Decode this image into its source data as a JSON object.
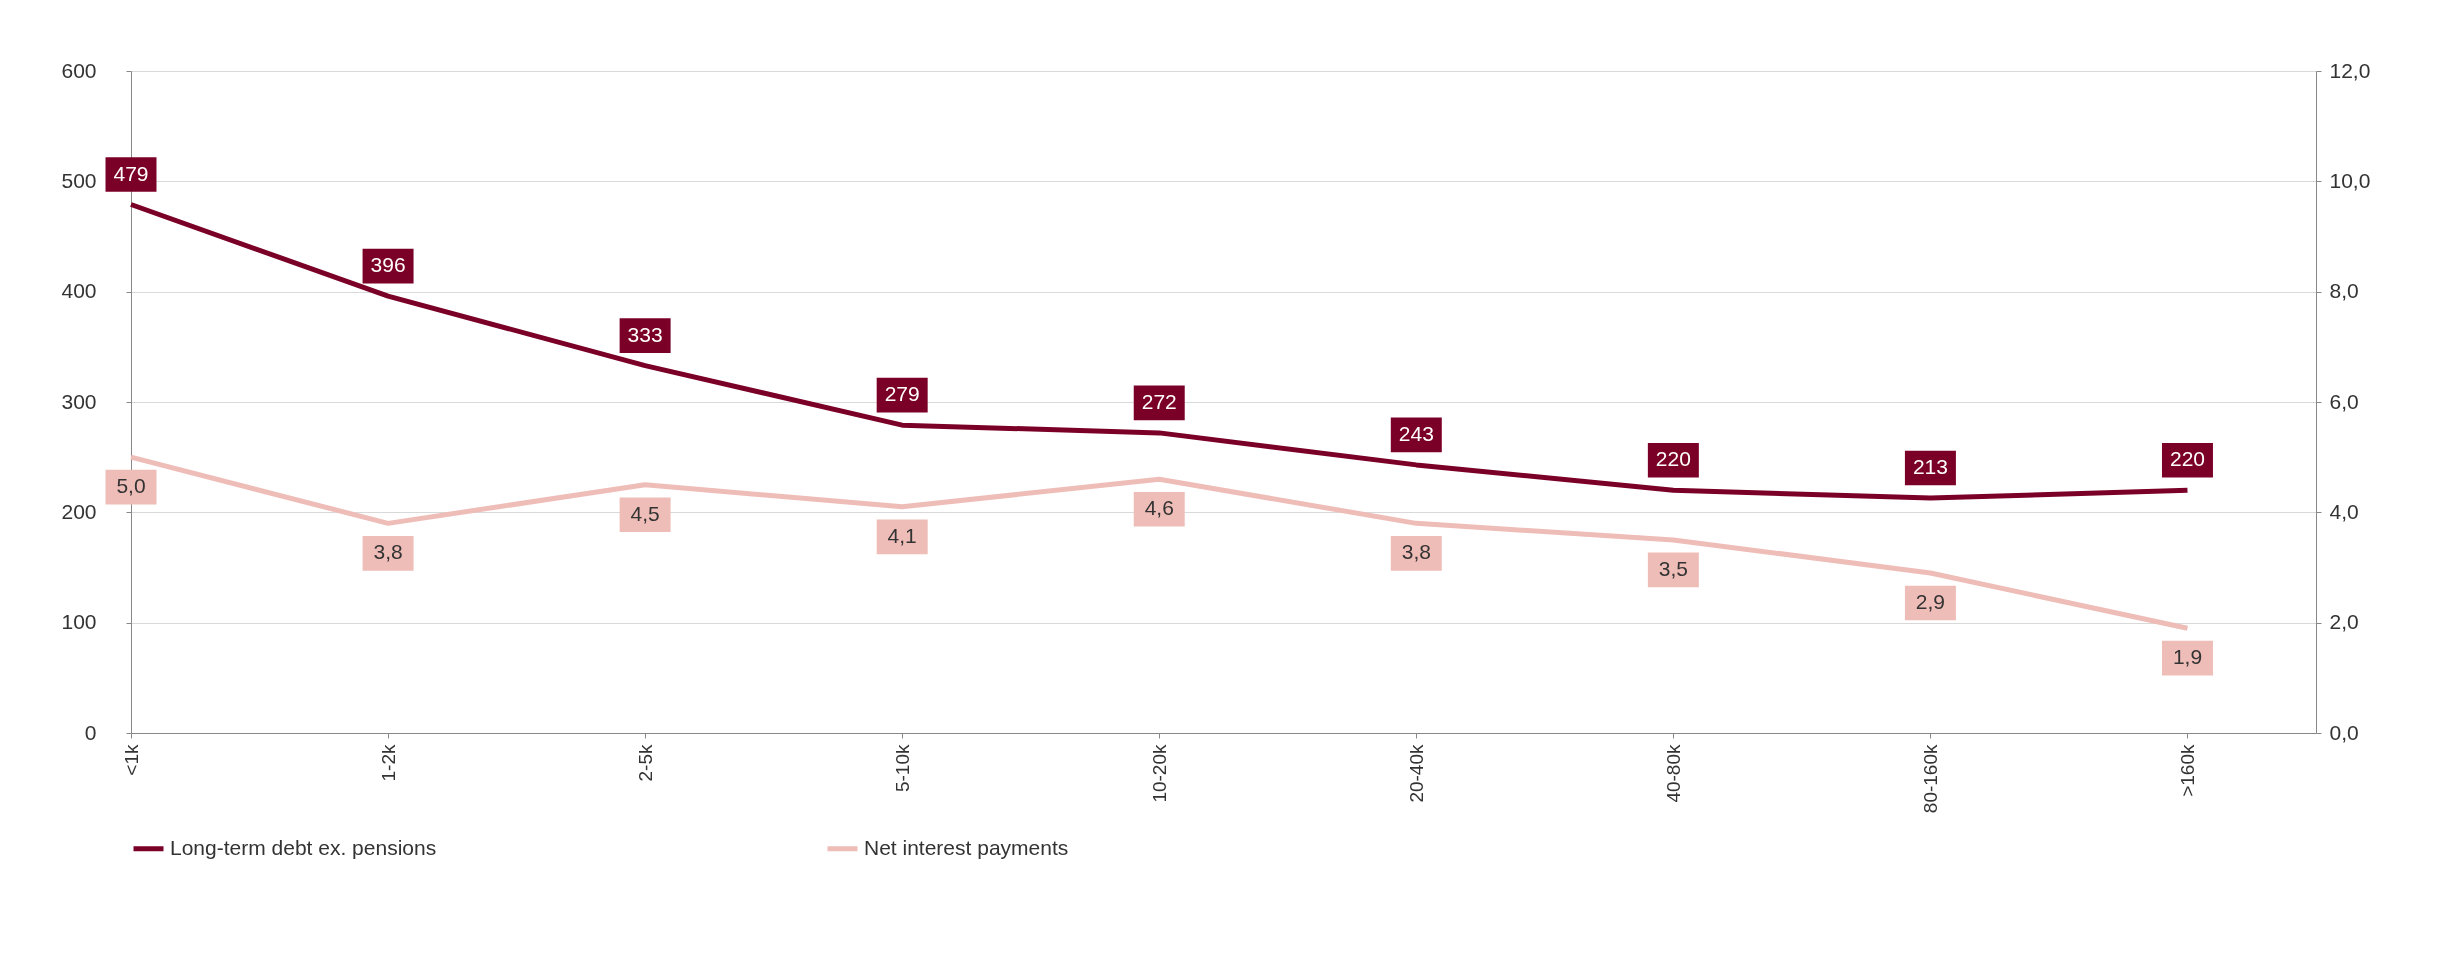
{
  "chart_data": {
    "type": "line",
    "categories": [
      "<1k",
      "1-2k",
      "2-5k",
      "5-10k",
      "10-20k",
      "20-40k",
      "40-80k",
      "80-160k",
      ">160k"
    ],
    "series": [
      {
        "name": "Long-term debt ex. pensions",
        "color": "#7b0028",
        "values": [
          479,
          396,
          333,
          279,
          272,
          243,
          220,
          213,
          220
        ],
        "value_labels": [
          "479",
          "396",
          "333",
          "279",
          "272",
          "243",
          "220",
          "213",
          "220"
        ]
      },
      {
        "name": "Net interest payments",
        "color": "#efbdb8",
        "axis": "y2",
        "values": [
          5.0,
          3.8,
          4.5,
          4.1,
          4.6,
          3.8,
          3.5,
          2.9,
          1.9
        ],
        "value_labels": [
          "5,0",
          "3,8",
          "4,5",
          "4,1",
          "4,6",
          "3,8",
          "3,5",
          "2,9",
          "1,9"
        ]
      }
    ],
    "ylim": [
      0,
      600
    ],
    "yticks": [
      0,
      100,
      200,
      300,
      400,
      500,
      600
    ],
    "y2lim": [
      0,
      12
    ],
    "y2ticks": [
      {
        "value": 0,
        "label": "0,0"
      },
      {
        "value": 2,
        "label": "2,0"
      },
      {
        "value": 4,
        "label": "4,0"
      },
      {
        "value": 6,
        "label": "6,0"
      },
      {
        "value": 8,
        "label": "8,0"
      },
      {
        "value": 10,
        "label": "10,0"
      },
      {
        "value": 12,
        "label": "12,0"
      }
    ],
    "grid": "y",
    "legend": "bottom",
    "marker": "none",
    "line_style": "solid"
  }
}
